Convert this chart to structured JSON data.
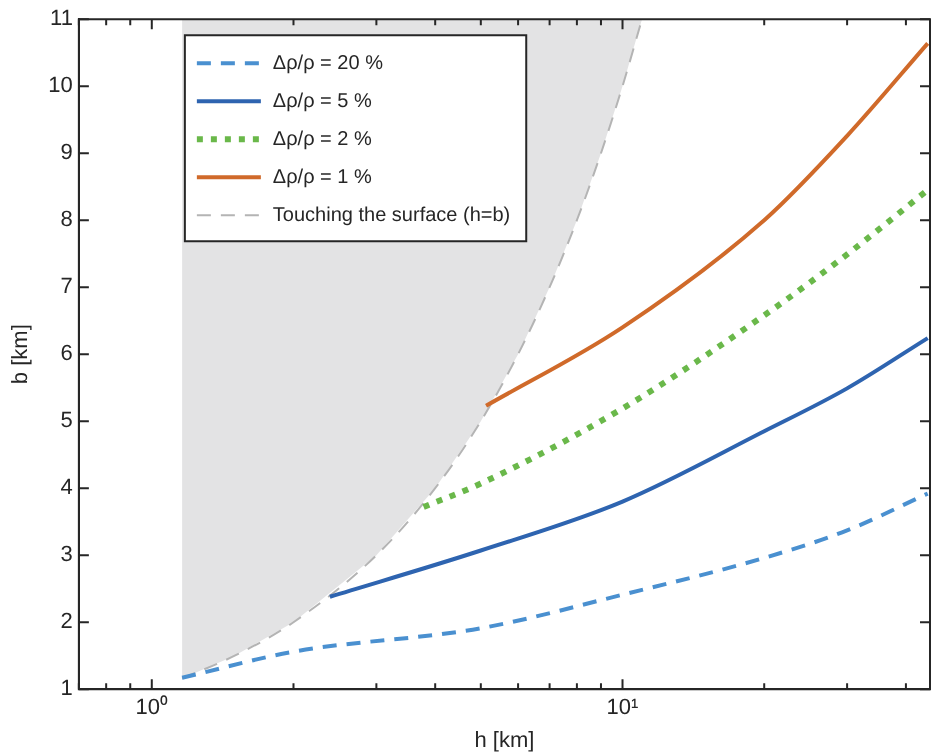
{
  "chart_data": {
    "type": "line",
    "xlabel": "h [km]",
    "ylabel": "b [km]",
    "log": "x",
    "xlim": [
      0.7,
      45
    ],
    "ylim": [
      1,
      11
    ],
    "xticks": [
      {
        "value": 0.7,
        "label": null
      },
      {
        "value": 0.8,
        "label": null
      },
      {
        "value": 0.9,
        "label": null
      },
      {
        "value": 1,
        "label": "10⁰"
      },
      {
        "value": 2,
        "label": null
      },
      {
        "value": 3,
        "label": null
      },
      {
        "value": 4,
        "label": null
      },
      {
        "value": 5,
        "label": null
      },
      {
        "value": 6,
        "label": null
      },
      {
        "value": 7,
        "label": null
      },
      {
        "value": 8,
        "label": null
      },
      {
        "value": 9,
        "label": null
      },
      {
        "value": 10,
        "label": "10¹"
      },
      {
        "value": 20,
        "label": null
      },
      {
        "value": 30,
        "label": null
      },
      {
        "value": 40,
        "label": null
      }
    ],
    "yticks": [
      1,
      2,
      3,
      4,
      5,
      6,
      7,
      8,
      9,
      10,
      11
    ],
    "grid": false,
    "legend": "top left",
    "series": [
      {
        "name": "Δρ/ρ = 20 %",
        "color": "#4a90d0",
        "line_style": "dashed",
        "x": [
          1.16,
          2,
          5,
          10,
          20,
          30,
          44.5
        ],
        "values": [
          1.17,
          1.56,
          1.91,
          2.41,
          2.96,
          3.37,
          3.92
        ]
      },
      {
        "name": "Δρ/ρ = 5 %",
        "color": "#2e64b0",
        "line_style": "solid",
        "x": [
          2.39,
          5,
          10,
          20,
          30,
          44.5
        ],
        "values": [
          2.38,
          3.07,
          3.8,
          4.85,
          5.49,
          6.24
        ]
      },
      {
        "name": "Δρ/ρ = 2 %",
        "color": "#6ab84a",
        "line_style": "dotted",
        "x": [
          3.78,
          5,
          10,
          20,
          30,
          44.5
        ],
        "values": [
          3.72,
          4.07,
          5.19,
          6.58,
          7.49,
          8.45
        ]
      },
      {
        "name": "Δρ/ρ = 1 %",
        "color": "#d06a2a",
        "line_style": "solid",
        "x": [
          5.13,
          10,
          20,
          30,
          44.5
        ],
        "values": [
          5.23,
          6.4,
          8.0,
          9.26,
          10.64
        ]
      },
      {
        "name": "Touching the surface (h=b)",
        "type": "line",
        "color": "#b4b4b4",
        "line_style": "dashed",
        "x": [
          1.16,
          1.5,
          2,
          3,
          4,
          5,
          6,
          7,
          8,
          9,
          10,
          11
        ],
        "values": [
          1.16,
          1.5,
          2,
          3,
          4,
          5,
          6,
          7,
          8,
          9,
          10,
          11
        ]
      }
    ]
  }
}
